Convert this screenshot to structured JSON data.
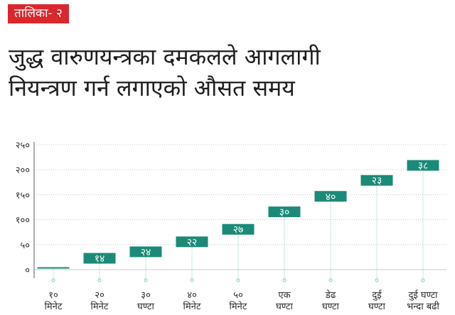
{
  "header": {
    "tag_label": "तालिका- २",
    "title_line1": "जुद्ध वारुणयन्त्रका दमकलले आगलागी",
    "title_line2": "नियन्त्रण गर्न लगाएको औसत समय"
  },
  "colors": {
    "tag_bg": "#d9272d",
    "box": "#1c8a78",
    "axis": "#8a8a8a",
    "grid": "#c9c9c9",
    "leader": "#7fc8ba"
  },
  "chart_data": {
    "type": "bar",
    "ylim": [
      0,
      250
    ],
    "yticks": [
      "०",
      "५०",
      "१००",
      "१५०",
      "२००",
      "२५०"
    ],
    "ytick_values": [
      0,
      50,
      100,
      150,
      200,
      250
    ],
    "grid": true,
    "categories": [
      [
        "१०",
        "मिनेट"
      ],
      [
        "२०",
        "मिनेट"
      ],
      [
        "३०",
        "घण्टा"
      ],
      [
        "४०",
        "मिनेट"
      ],
      [
        "५०",
        "मिनेट"
      ],
      [
        "एक",
        "घण्टा"
      ],
      [
        "डेढ",
        "घण्टा"
      ],
      [
        "दुई",
        "घण्टा"
      ],
      [
        "दुई  घण्टा",
        "भन्दा  बढी"
      ]
    ],
    "values": [
      0,
      14,
      24,
      22,
      27,
      30,
      40,
      23,
      38
    ],
    "labels": [
      "",
      "१४",
      "२४",
      "२२",
      "२७",
      "३०",
      "४०",
      "२३",
      "३८"
    ],
    "box_position": [
      2,
      12,
      25,
      45,
      70,
      105,
      136,
      168,
      198
    ]
  }
}
